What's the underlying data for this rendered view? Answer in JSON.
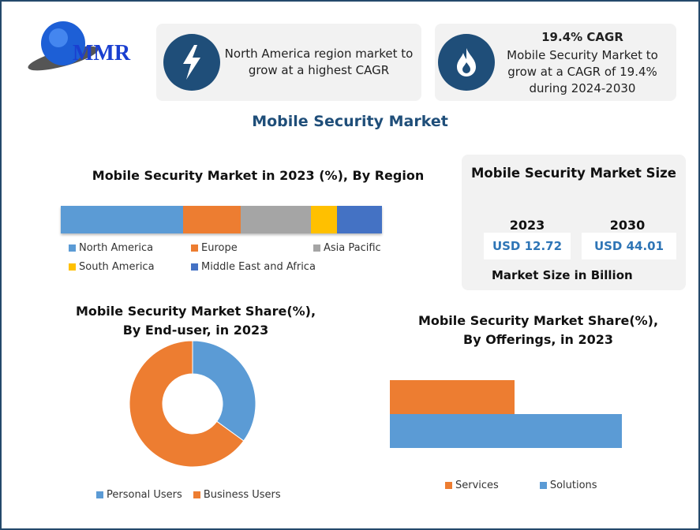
{
  "logo": {
    "text": "MMR"
  },
  "card1": {
    "icon": "lightning-icon",
    "text": "North America region market to grow at a highest CAGR"
  },
  "card2": {
    "icon": "flame-icon",
    "title": "19.4% CAGR",
    "text": "Mobile Security Market to grow at a CAGR of 19.4% during 2024-2030"
  },
  "main_title": "Mobile Security Market",
  "size_box": {
    "title": "Mobile Security Market Size",
    "years": [
      "2023",
      "2030"
    ],
    "values": [
      "USD 12.72",
      "USD 44.01"
    ],
    "caption": "Market Size in Billion"
  },
  "colors": {
    "blue": "#5b9bd5",
    "orange": "#ed7d31",
    "gray": "#a5a5a5",
    "yellow": "#ffc000",
    "darkblue": "#4472c4",
    "navy": "#1f4e79"
  },
  "chart_data": [
    {
      "type": "bar",
      "orientation": "horizontal-stacked",
      "title": "Mobile Security Market in 2023 (%), By Region",
      "categories": [
        "North America",
        "Europe",
        "Asia Pacific",
        "South America",
        "Middle East and Africa"
      ],
      "values": [
        38,
        18,
        22,
        8,
        14
      ],
      "colors": [
        "#5b9bd5",
        "#ed7d31",
        "#a5a5a5",
        "#ffc000",
        "#4472c4"
      ],
      "legend": "bottom"
    },
    {
      "type": "pie",
      "donut": true,
      "title": "Mobile Security Market Share(%), By End-user, in 2023",
      "categories": [
        "Personal Users",
        "Business Users"
      ],
      "values": [
        35,
        65
      ],
      "colors": [
        "#5b9bd5",
        "#ed7d31"
      ],
      "legend": "bottom"
    },
    {
      "type": "bar",
      "orientation": "horizontal",
      "title": "Mobile Security Market Share(%), By Offerings, in 2023",
      "categories": [
        "Services",
        "Solutions"
      ],
      "values": [
        35,
        65
      ],
      "colors": [
        "#ed7d31",
        "#5b9bd5"
      ],
      "legend": "bottom"
    }
  ]
}
